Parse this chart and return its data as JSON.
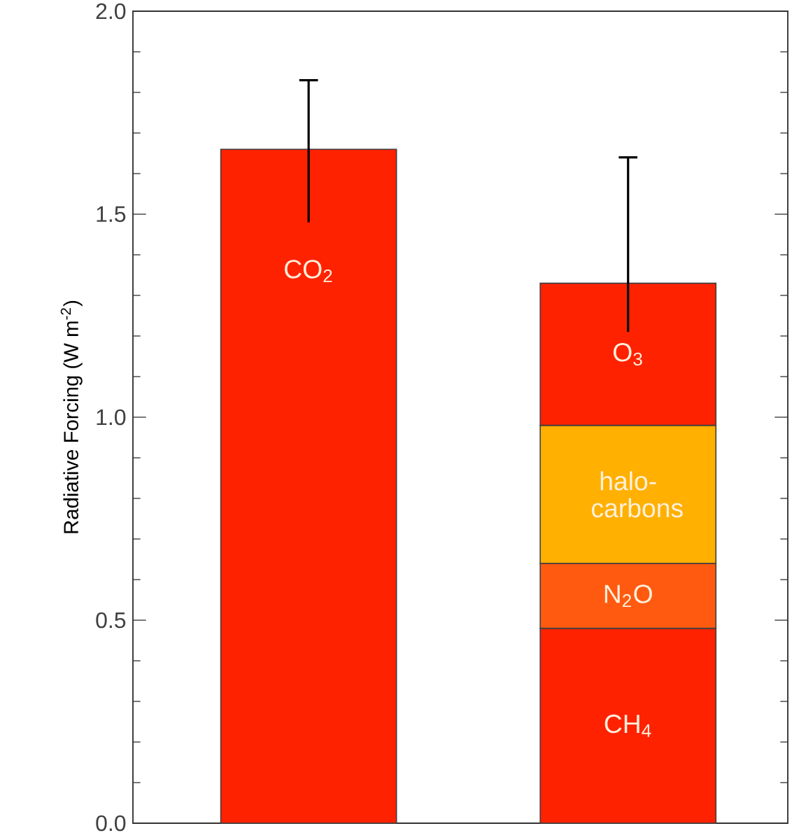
{
  "chart_data": {
    "type": "bar",
    "stacked": true,
    "ylabel": "Radiative Forcing (W m$^{-2}$)",
    "categories": [
      null,
      null
    ],
    "series": [
      {
        "name": "CO$_{2}$",
        "color": "#ff2200",
        "values": [
          1.66,
          null
        ],
        "errors": [
          [
            1.48,
            1.83
          ],
          null
        ]
      },
      {
        "name": "CH$_{4}$",
        "color": "#ff2200",
        "values": [
          null,
          0.48
        ]
      },
      {
        "name": "N$_{2}$O",
        "color": "#ff5a10",
        "values": [
          null,
          0.16
        ]
      },
      {
        "name": "halo-carbons",
        "color": "#ffb000",
        "values": [
          null,
          0.34
        ]
      },
      {
        "name": "O$_{3}$",
        "color": "#ff2200",
        "values": [
          null,
          0.35
        ],
        "errors": [
          null,
          [
            1.21,
            1.64
          ]
        ]
      }
    ],
    "ylim": [
      0,
      2.0
    ],
    "yticks": [
      {
        "value": 0,
        "label": "0.0"
      },
      {
        "value": 0.1,
        "label": null
      },
      {
        "value": 0.2,
        "label": null
      },
      {
        "value": 0.3,
        "label": null
      },
      {
        "value": 0.4,
        "label": null
      },
      {
        "value": 0.5,
        "label": "0.5"
      },
      {
        "value": 0.6,
        "label": null
      },
      {
        "value": 0.7,
        "label": null
      },
      {
        "value": 0.8,
        "label": null
      },
      {
        "value": 0.9,
        "label": null
      },
      {
        "value": 1.0,
        "label": "1.0"
      },
      {
        "value": 1.1,
        "label": null
      },
      {
        "value": 1.2,
        "label": null
      },
      {
        "value": 1.3,
        "label": null
      },
      {
        "value": 1.4,
        "label": null
      },
      {
        "value": 1.5,
        "label": "1.5"
      },
      {
        "value": 1.6,
        "label": null
      },
      {
        "value": 1.7,
        "label": null
      },
      {
        "value": 1.8,
        "label": null
      },
      {
        "value": 1.9,
        "label": null
      },
      {
        "value": 2.0,
        "label": "2.0"
      }
    ],
    "grid": false
  }
}
